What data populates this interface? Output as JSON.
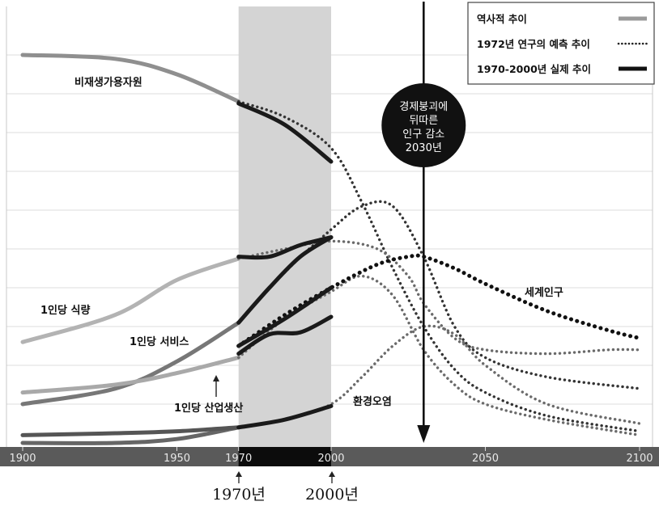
{
  "chart_data": {
    "type": "line",
    "title": "",
    "xlabel": "",
    "ylabel": "",
    "xlim": [
      1900,
      2100
    ],
    "x_ticks": [
      "1900",
      "1950",
      "1970",
      "2000",
      "2050",
      "2100"
    ],
    "highlight_period": [
      1970,
      2000
    ],
    "highlight_period_labels": [
      "1970년",
      "2000년"
    ],
    "event": {
      "year": 2030,
      "label_lines": [
        "경제붕괴에",
        "뒤따른",
        "인구 감소",
        "2030년"
      ]
    },
    "legend": {
      "placement": "top-right",
      "entries": [
        {
          "label": "역사적 추이",
          "style": "historical"
        },
        {
          "label": "1972년 연구의 예측 추이",
          "style": "projected"
        },
        {
          "label": "1970-2000년 실제 추이",
          "style": "actual"
        }
      ]
    },
    "series": [
      {
        "name": "비재생가용자원",
        "historical": [
          [
            1900,
            100
          ],
          [
            1930,
            99
          ],
          [
            1950,
            95
          ],
          [
            1970,
            88
          ]
        ],
        "projected": [
          [
            1970,
            88
          ],
          [
            1985,
            84
          ],
          [
            2000,
            76
          ],
          [
            2010,
            62
          ],
          [
            2020,
            45
          ],
          [
            2030,
            30
          ],
          [
            2040,
            19
          ],
          [
            2050,
            13
          ],
          [
            2070,
            7
          ],
          [
            2100,
            3
          ]
        ],
        "actual": [
          [
            1970,
            87.5
          ],
          [
            1985,
            82
          ],
          [
            2000,
            72.5
          ]
        ]
      },
      {
        "name": "1인당 식량",
        "historical": [
          [
            1900,
            26
          ],
          [
            1930,
            33
          ],
          [
            1950,
            42
          ],
          [
            1970,
            47.5
          ]
        ],
        "projected": [
          [
            1970,
            47.5
          ],
          [
            1985,
            50
          ],
          [
            2000,
            52
          ],
          [
            2015,
            50
          ],
          [
            2025,
            43
          ],
          [
            2030,
            36
          ],
          [
            2040,
            27
          ],
          [
            2050,
            24
          ],
          [
            2070,
            23
          ],
          [
            2090,
            24
          ],
          [
            2100,
            24
          ]
        ],
        "actual": [
          [
            1970,
            48
          ],
          [
            1980,
            48
          ],
          [
            1990,
            51
          ],
          [
            2000,
            53
          ]
        ]
      },
      {
        "name": "1인당 서비스",
        "historical": [
          [
            1900,
            10
          ],
          [
            1930,
            14
          ],
          [
            1950,
            21
          ],
          [
            1970,
            31
          ]
        ],
        "projected": [
          [
            1970,
            31
          ],
          [
            1985,
            44
          ],
          [
            2000,
            55
          ],
          [
            2010,
            61
          ],
          [
            2020,
            61
          ],
          [
            2030,
            48
          ],
          [
            2040,
            30
          ],
          [
            2050,
            22
          ],
          [
            2070,
            17
          ],
          [
            2100,
            14
          ]
        ],
        "actual": [
          [
            1970,
            31
          ],
          [
            1980,
            40
          ],
          [
            1990,
            48
          ],
          [
            2000,
            53
          ]
        ]
      },
      {
        "name": "1인당 산업생산",
        "historical": [
          [
            1900,
            13
          ],
          [
            1930,
            15
          ],
          [
            1950,
            18
          ],
          [
            1970,
            22
          ]
        ],
        "projected": [
          [
            1970,
            22
          ],
          [
            1985,
            32
          ],
          [
            2000,
            39
          ],
          [
            2010,
            43
          ],
          [
            2020,
            38
          ],
          [
            2030,
            24
          ],
          [
            2040,
            15
          ],
          [
            2050,
            10
          ],
          [
            2070,
            6
          ],
          [
            2100,
            2
          ]
        ],
        "actual": [
          [
            1970,
            23
          ],
          [
            1980,
            28
          ],
          [
            1990,
            28.5
          ],
          [
            2000,
            32.5
          ]
        ]
      },
      {
        "name": "세계인구",
        "historical": [
          [
            1900,
            0
          ],
          [
            1930,
            0
          ],
          [
            1950,
            1
          ],
          [
            1970,
            4
          ]
        ],
        "projected": [
          [
            1970,
            25
          ],
          [
            1985,
            33
          ],
          [
            2000,
            40
          ],
          [
            2015,
            46
          ],
          [
            2025,
            48
          ],
          [
            2030,
            48
          ],
          [
            2040,
            45
          ],
          [
            2050,
            41
          ],
          [
            2070,
            34
          ],
          [
            2090,
            29
          ],
          [
            2100,
            27
          ]
        ],
        "actual": [
          [
            1970,
            25
          ],
          [
            1985,
            32
          ],
          [
            2000,
            40
          ]
        ]
      },
      {
        "name": "환경오염",
        "historical": [
          [
            1900,
            2
          ],
          [
            1930,
            2.5
          ],
          [
            1950,
            3
          ],
          [
            1970,
            4
          ]
        ],
        "projected": [
          [
            1970,
            4
          ],
          [
            1985,
            6
          ],
          [
            2000,
            10
          ],
          [
            2010,
            17
          ],
          [
            2020,
            25
          ],
          [
            2030,
            30
          ],
          [
            2040,
            28
          ],
          [
            2050,
            20
          ],
          [
            2070,
            10
          ],
          [
            2100,
            5
          ]
        ],
        "actual": [
          [
            1970,
            4
          ],
          [
            1985,
            6
          ],
          [
            2000,
            9.5
          ]
        ]
      }
    ],
    "series_label_positions": {
      "비재생가용자원": "upper-left",
      "1인당 식량": "left",
      "1인당 서비스": "left-middle",
      "1인당 산업생산": "lower-left",
      "세계인구": "right",
      "환경오염": "lower-middle"
    }
  }
}
